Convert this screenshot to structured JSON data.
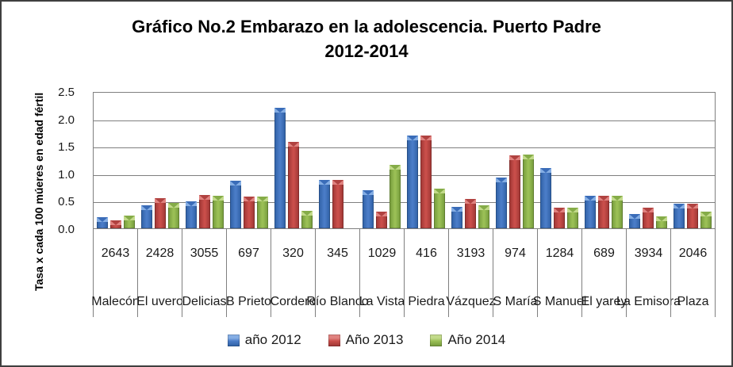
{
  "title": {
    "line1": "Gráfico No.2 Embarazo en la adolescencia. Puerto Padre",
    "line2": "2012-2014"
  },
  "y_axis": {
    "title": "Tasa x cada 100 múeres en edad fértil",
    "ticks": [
      "2.5",
      "2.0",
      "1.5",
      "1.0",
      "0.5",
      "0.0"
    ]
  },
  "legend": {
    "position": "bottom",
    "items": [
      {
        "label": "año 2012"
      },
      {
        "label": "Año 2013"
      },
      {
        "label": "Año 2014"
      }
    ]
  },
  "colors": {
    "series": [
      {
        "edge": "#2e5fa3",
        "center": "#4a7cc7",
        "cap": "#85aee4",
        "cap_tri": "#3a6cb8"
      },
      {
        "edge": "#9c3533",
        "center": "#c94e4a",
        "cap": "#e08380",
        "cap_tri": "#b04240"
      },
      {
        "edge": "#72983a",
        "center": "#9abf55",
        "cap": "#c2da8a",
        "cap_tri": "#85ac48"
      }
    ],
    "gridline": "#7f7f7f",
    "frame_border": "#3f3f3f"
  },
  "chart_data": {
    "type": "bar",
    "title": "Gráfico No.2 Embarazo en la adolescencia. Puerto Padre 2012-2014",
    "xlabel": "",
    "ylabel": "Tasa x cada 100 múeres en edad fértil",
    "ylim": [
      0,
      2.5
    ],
    "y_tick_step": 0.5,
    "grid": true,
    "legend_position": "bottom",
    "categories": [
      "Malecón",
      "El uvero",
      "Delicias",
      "B Prieto",
      "Cordero",
      "Río Blanco",
      "La Vista",
      "Piedra",
      "Vázquez",
      "S María",
      "S Manuel",
      "El yarey",
      "La Emisora",
      "Plaza"
    ],
    "category_numbers": [
      "2643",
      "2428",
      "3055",
      "697",
      "320",
      "345",
      "1029",
      "416",
      "3193",
      "974",
      "1284",
      "689",
      "3934",
      "2046"
    ],
    "series": [
      {
        "name": "año 2012",
        "values": [
          0.2,
          0.42,
          0.49,
          0.86,
          2.19,
          0.88,
          0.69,
          1.69,
          0.39,
          0.93,
          1.1,
          0.59,
          0.26,
          0.45
        ]
      },
      {
        "name": "Año 2013",
        "values": [
          0.15,
          0.55,
          0.6,
          0.58,
          1.57,
          0.88,
          0.3,
          1.69,
          0.53,
          1.33,
          0.38,
          0.59,
          0.38,
          0.45
        ]
      },
      {
        "name": "Año 2014",
        "values": [
          0.23,
          0.46,
          0.59,
          0.58,
          0.32,
          0.0,
          1.16,
          0.72,
          0.42,
          1.34,
          0.38,
          0.59,
          0.22,
          0.3
        ]
      }
    ]
  }
}
